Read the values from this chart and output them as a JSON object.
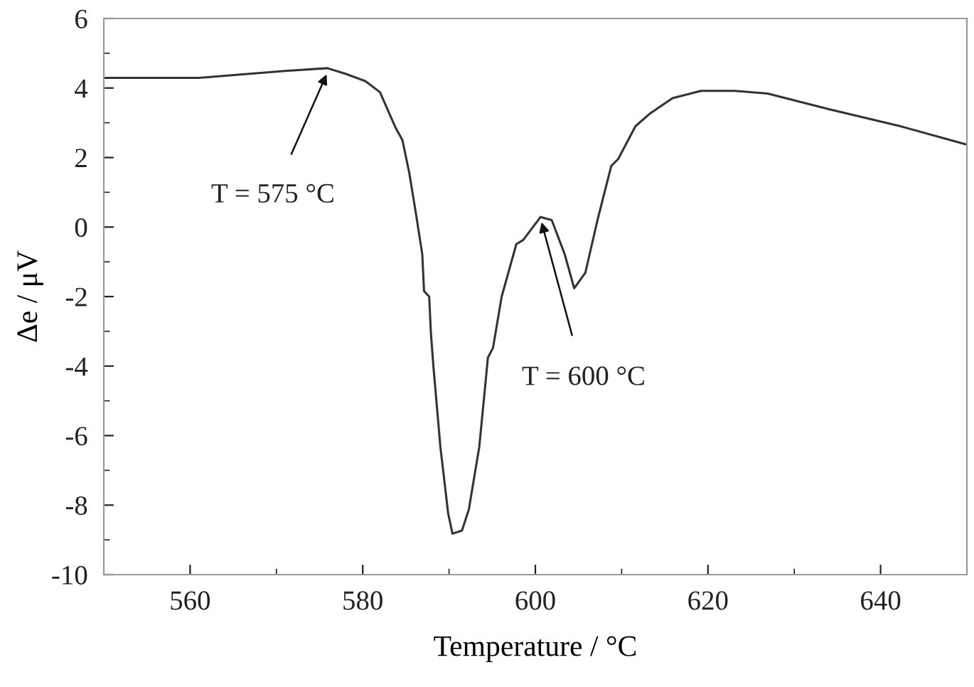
{
  "chart_data": {
    "type": "line",
    "xlabel": "Temperature / °C",
    "ylabel": "Δe / μV",
    "xlim": [
      550,
      650
    ],
    "xticks": [
      560,
      580,
      600,
      620,
      640
    ],
    "ylim": [
      -10,
      6
    ],
    "yticks": [
      -10,
      -8,
      -6,
      -4,
      -2,
      0,
      2,
      4,
      6
    ],
    "grid": false,
    "legend": false,
    "marker": "none",
    "line_style": "solid",
    "series": [
      {
        "color": "#333333",
        "x": [
          550,
          561,
          571,
          575.9,
          578,
          580.3,
          582,
          583,
          583.8,
          584.6,
          585.4,
          586.2,
          586.9,
          587.1,
          587.7,
          587.9,
          588.2,
          589,
          589.9,
          590.4,
          591.5,
          592.3,
          593.5,
          594.3,
          594.5,
          595.1,
          596.1,
          597.8,
          598.6,
          600.6,
          601.9,
          603.4,
          604.5,
          605.8,
          607.2,
          608.8,
          609.6,
          611.6,
          613.3,
          615.9,
          619.2,
          623.1,
          626.9,
          634,
          642.3,
          650
        ],
        "values": [
          4.29,
          4.29,
          4.49,
          4.57,
          4.41,
          4.2,
          3.88,
          3.31,
          2.86,
          2.5,
          1.55,
          0.33,
          -0.78,
          -1.84,
          -2.0,
          -3.06,
          -4.04,
          -6.33,
          -8.24,
          -8.82,
          -8.73,
          -8.12,
          -6.33,
          -4.29,
          -3.76,
          -3.47,
          -2.0,
          -0.49,
          -0.37,
          0.29,
          0.2,
          -0.78,
          -1.76,
          -1.31,
          0.2,
          1.76,
          1.96,
          2.9,
          3.27,
          3.71,
          3.92,
          3.92,
          3.84,
          3.39,
          2.9,
          2.37
        ]
      }
    ],
    "annotations": [
      {
        "text": "T = 575 °C",
        "x": 576,
        "y": 4.5
      },
      {
        "text": "T = 600 °C",
        "x": 600.6,
        "y": 0.25
      }
    ]
  }
}
